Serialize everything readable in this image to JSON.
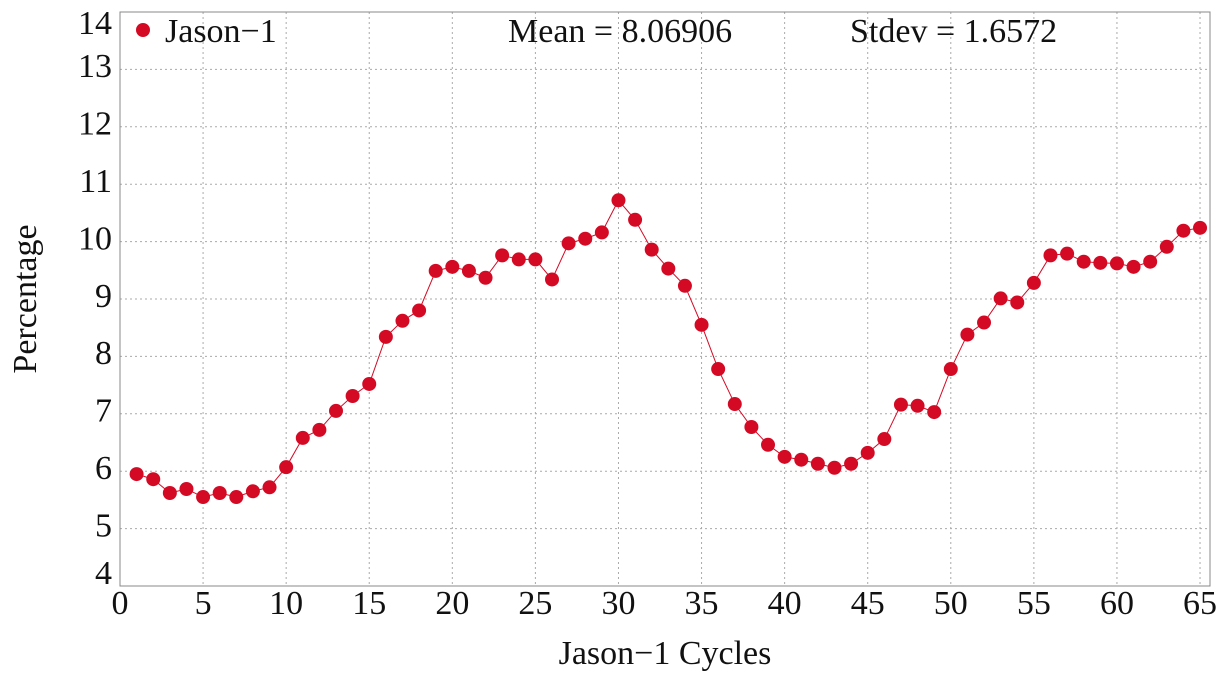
{
  "chart_data": {
    "type": "line",
    "xlabel": "Jason−1 Cycles",
    "ylabel": "Percentage",
    "annotations": [
      "Mean = 8.06906",
      "Stdev = 1.6572"
    ],
    "x": [
      1,
      2,
      3,
      4,
      5,
      6,
      7,
      8,
      9,
      10,
      11,
      12,
      13,
      14,
      15,
      16,
      17,
      18,
      19,
      20,
      21,
      22,
      23,
      24,
      25,
      26,
      27,
      28,
      29,
      30,
      31,
      32,
      33,
      34,
      35,
      36,
      37,
      38,
      39,
      40,
      41,
      42,
      43,
      44,
      45,
      46,
      47,
      48,
      49,
      50,
      51,
      52,
      53,
      54,
      55,
      56,
      57,
      58,
      59,
      60,
      61,
      62,
      63,
      64,
      65
    ],
    "series": [
      {
        "name": "Jason−1",
        "color": "#d40a25",
        "values": [
          5.95,
          5.86,
          5.62,
          5.69,
          5.55,
          5.62,
          5.55,
          5.65,
          5.72,
          6.07,
          6.58,
          6.72,
          7.05,
          7.31,
          7.52,
          8.34,
          8.62,
          8.8,
          9.49,
          9.56,
          9.49,
          9.37,
          9.76,
          9.69,
          9.69,
          9.34,
          9.97,
          10.05,
          10.16,
          10.72,
          10.38,
          9.86,
          9.53,
          9.23,
          8.55,
          7.78,
          7.17,
          6.77,
          6.46,
          6.25,
          6.2,
          6.13,
          6.06,
          6.13,
          6.32,
          6.56,
          7.16,
          7.14,
          7.03,
          7.78,
          8.38,
          8.59,
          9.01,
          8.94,
          9.28,
          9.76,
          9.79,
          9.65,
          9.63,
          9.62,
          9.56,
          9.65,
          9.91,
          10.19,
          10.24
        ]
      }
    ],
    "xlim": [
      0,
      65.6
    ],
    "ylim": [
      4,
      14
    ],
    "xticks": [
      0,
      5,
      10,
      15,
      20,
      25,
      30,
      35,
      40,
      45,
      50,
      55,
      60,
      65
    ],
    "yticks": [
      4,
      5,
      6,
      7,
      8,
      9,
      10,
      11,
      12,
      13,
      14
    ],
    "grid": true,
    "legend": "upper left"
  }
}
